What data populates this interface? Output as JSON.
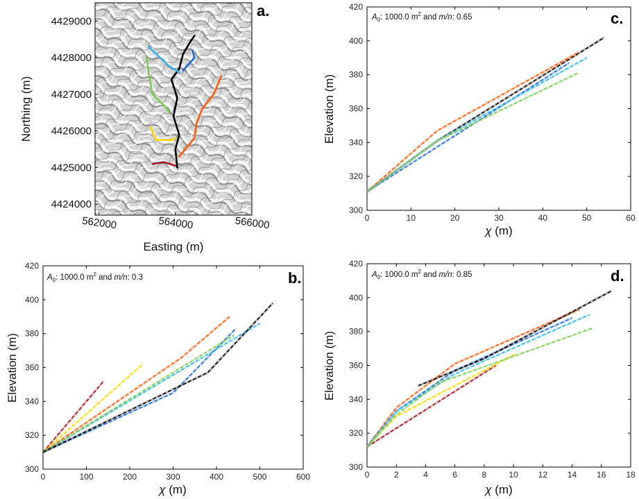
{
  "chart_data": [
    {
      "panel": "a.",
      "type": "map",
      "xlabel": "Easting (m)",
      "ylabel": "Northing (m)",
      "x_ticks": [
        "562000",
        "564000",
        "566000"
      ],
      "y_ticks": [
        "4424000",
        "4425000",
        "4426000",
        "4427000",
        "4428000",
        "4429000"
      ],
      "xlim": [
        561900,
        566000
      ],
      "ylim": [
        4423700,
        4429500
      ],
      "channels": [
        {
          "color": "#000000",
          "points": [
            [
              564050,
              4425000
            ],
            [
              564000,
              4425500
            ],
            [
              564100,
              4425900
            ],
            [
              563950,
              4426400
            ],
            [
              564050,
              4426900
            ],
            [
              563900,
              4427400
            ],
            [
              564100,
              4427700
            ],
            [
              564200,
              4428100
            ],
            [
              564400,
              4428450
            ],
            [
              564500,
              4428600
            ]
          ]
        },
        {
          "color": "#ff5a0a",
          "points": [
            [
              564100,
              4425300
            ],
            [
              564500,
              4425800
            ],
            [
              564550,
              4426200
            ],
            [
              564700,
              4426600
            ],
            [
              565000,
              4427000
            ],
            [
              565200,
              4427500
            ]
          ]
        },
        {
          "color": "#33b6e6",
          "points": [
            [
              563300,
              4428300
            ],
            [
              563600,
              4428000
            ],
            [
              563800,
              4427800
            ],
            [
              564100,
              4427600
            ]
          ]
        },
        {
          "color": "#1f6bd1",
          "points": [
            [
              564200,
              4427650
            ],
            [
              564500,
              4428000
            ],
            [
              564450,
              4428200
            ]
          ]
        },
        {
          "color": "#7fcc57",
          "points": [
            [
              563250,
              4428000
            ],
            [
              563300,
              4427600
            ],
            [
              563400,
              4427000
            ],
            [
              563700,
              4426700
            ],
            [
              563850,
              4426500
            ]
          ]
        },
        {
          "color": "#ffd700",
          "points": [
            [
              563350,
              4426100
            ],
            [
              563500,
              4425750
            ],
            [
              563900,
              4425750
            ],
            [
              564000,
              4425800
            ]
          ]
        },
        {
          "color": "#a0141e",
          "points": [
            [
              563400,
              4425100
            ],
            [
              563700,
              4425150
            ],
            [
              564000,
              4425050
            ]
          ]
        }
      ]
    },
    {
      "panel": "b.",
      "type": "line",
      "annotation": "A_0: 1000.0 m^2 and m/n: 0.3",
      "xlabel": "χ (m)",
      "ylabel": "Elevation (m)",
      "xlim": [
        0,
        600
      ],
      "ylim": [
        300,
        420
      ],
      "x_ticks": [
        0,
        100,
        200,
        300,
        400,
        500,
        600
      ],
      "y_ticks": [
        300,
        320,
        340,
        360,
        380,
        400,
        420
      ],
      "series": [
        {
          "color": "#a0141e",
          "x": [
            0,
            140
          ],
          "y": [
            310,
            352
          ]
        },
        {
          "color": "#ffd700",
          "x": [
            0,
            230
          ],
          "y": [
            310,
            362
          ]
        },
        {
          "color": "#ff5a0a",
          "x": [
            0,
            320,
            430
          ],
          "y": [
            310,
            366,
            390
          ]
        },
        {
          "color": "#1f6bd1",
          "x": [
            0,
            300,
            445
          ],
          "y": [
            310,
            345,
            383
          ]
        },
        {
          "color": "#33b6e6",
          "x": [
            0,
            500
          ],
          "y": [
            310,
            386
          ]
        },
        {
          "color": "#7fcc57",
          "x": [
            0,
            440
          ],
          "y": [
            310,
            379
          ]
        },
        {
          "color": "#000000",
          "x": [
            0,
            380,
            530
          ],
          "y": [
            310,
            357,
            398
          ]
        }
      ]
    },
    {
      "panel": "c.",
      "type": "line",
      "annotation": "A_0: 1000.0 m^2 and m/n: 0.65",
      "xlabel": "χ (m)",
      "ylabel": "Elevation (m)",
      "xlim": [
        0,
        60
      ],
      "ylim": [
        300,
        420
      ],
      "x_ticks": [
        0,
        10,
        20,
        30,
        40,
        50,
        60
      ],
      "y_ticks": [
        300,
        320,
        340,
        360,
        380,
        400,
        420
      ],
      "series": [
        {
          "color": "#000000",
          "x": [
            0,
            16,
            54
          ],
          "y": [
            311,
            341,
            402
          ]
        },
        {
          "color": "#ff5a0a",
          "x": [
            0,
            16,
            48
          ],
          "y": [
            311,
            347,
            393
          ]
        },
        {
          "color": "#1f6bd1",
          "x": [
            0,
            46
          ],
          "y": [
            311,
            387
          ]
        },
        {
          "color": "#33b6e6",
          "x": [
            0,
            16,
            50
          ],
          "y": [
            311,
            341,
            390
          ]
        },
        {
          "color": "#7fcc57",
          "x": [
            0,
            16,
            48
          ],
          "y": [
            311,
            341,
            381
          ]
        }
      ]
    },
    {
      "panel": "d.",
      "type": "line",
      "annotation": "A_0: 1000.0 m^2 and m/n: 0.85",
      "xlabel": "χ (m)",
      "ylabel": "Elevation (m)",
      "xlim": [
        0,
        18
      ],
      "ylim": [
        300,
        420
      ],
      "x_ticks": [
        0,
        2,
        4,
        6,
        8,
        10,
        12,
        14,
        16,
        18
      ],
      "y_ticks": [
        300,
        320,
        340,
        360,
        380,
        400,
        420
      ],
      "series": [
        {
          "color": "#a0141e",
          "x": [
            0,
            8.8
          ],
          "y": [
            312,
            360
          ]
        },
        {
          "color": "#ffd700",
          "x": [
            0,
            2,
            10.2
          ],
          "y": [
            312,
            330,
            367
          ]
        },
        {
          "color": "#ff5a0a",
          "x": [
            0,
            2,
            6,
            14.5
          ],
          "y": [
            312,
            335,
            361,
            393
          ]
        },
        {
          "color": "#1f6bd1",
          "x": [
            0,
            2,
            6,
            14
          ],
          "y": [
            312,
            333,
            357,
            388
          ]
        },
        {
          "color": "#33b6e6",
          "x": [
            0,
            2,
            6,
            15.2
          ],
          "y": [
            312,
            333,
            355,
            390
          ]
        },
        {
          "color": "#7fcc57",
          "x": [
            0,
            2,
            5,
            15.4
          ],
          "y": [
            312,
            331,
            350,
            382
          ]
        },
        {
          "color": "#000000",
          "x": [
            3.5,
            8,
            16.7
          ],
          "y": [
            348,
            364,
            404
          ]
        }
      ]
    }
  ]
}
